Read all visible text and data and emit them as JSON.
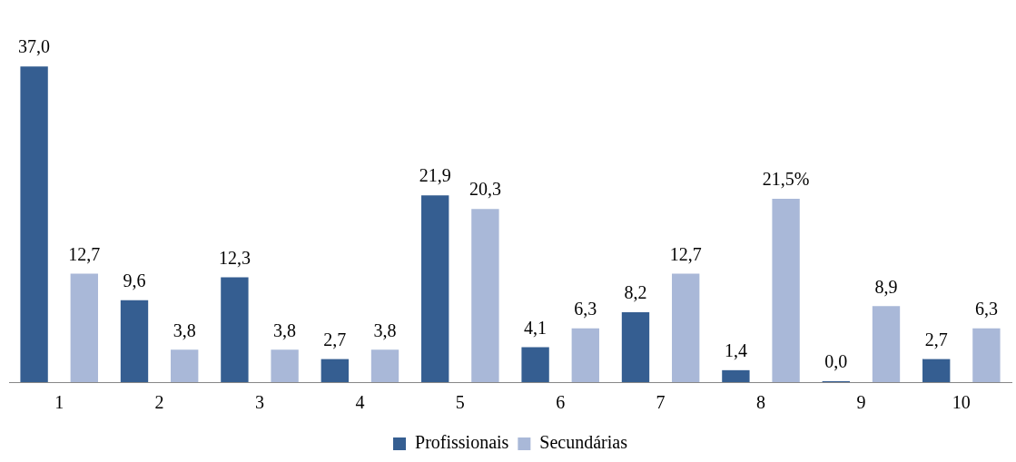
{
  "chart_data": {
    "type": "bar",
    "categories": [
      "1",
      "2",
      "3",
      "4",
      "5",
      "6",
      "7",
      "8",
      "9",
      "10"
    ],
    "series": [
      {
        "name": "Profissionais",
        "color": "#355e91",
        "values": [
          37.0,
          9.6,
          12.3,
          2.7,
          21.9,
          4.1,
          8.2,
          1.4,
          0.0,
          2.7
        ],
        "value_labels": [
          "37,0",
          "9,6",
          "12,3",
          "2,7",
          "21,9",
          "4,1",
          "8,2",
          "1,4",
          "0,0",
          "2,7"
        ]
      },
      {
        "name": "Secundárias",
        "color": "#a9b8d8",
        "values": [
          12.7,
          3.8,
          3.8,
          3.8,
          20.3,
          6.3,
          12.7,
          21.5,
          8.9,
          6.3
        ],
        "value_labels": [
          "12,7",
          "3,8",
          "3,8",
          "3,8",
          "20,3",
          "6,3",
          "12,7",
          "21,5%",
          "8,9",
          "6,3"
        ]
      }
    ],
    "legend": "bottom",
    "grid": false,
    "tick_labels": "x"
  }
}
